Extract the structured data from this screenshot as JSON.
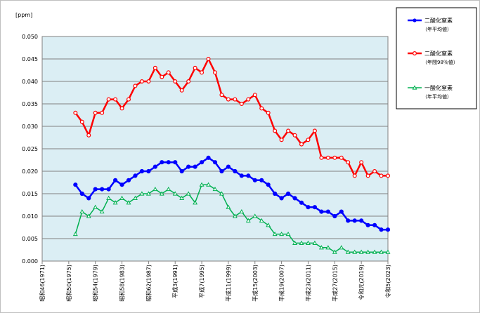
{
  "chart_data": {
    "type": "line",
    "unit_label": "[ppm]",
    "ylim": [
      0,
      0.05
    ],
    "y_ticks": [
      "0.000",
      "0.005",
      "0.010",
      "0.015",
      "0.020",
      "0.025",
      "0.030",
      "0.035",
      "0.040",
      "0.045",
      "0.050"
    ],
    "xlim": [
      1971,
      2023
    ],
    "x_ticks": [
      {
        "year": 1971,
        "label": "昭和46(1971)"
      },
      {
        "year": 1975,
        "label": "昭和50(1975)"
      },
      {
        "year": 1979,
        "label": "昭和54(1979)"
      },
      {
        "year": 1983,
        "label": "昭和58(1983)"
      },
      {
        "year": 1987,
        "label": "昭和62(1987)"
      },
      {
        "year": 1991,
        "label": "平成3(1991)"
      },
      {
        "year": 1995,
        "label": "平成7(1995)"
      },
      {
        "year": 1999,
        "label": "平成11(1999)"
      },
      {
        "year": 2003,
        "label": "平成15(2003)"
      },
      {
        "year": 2007,
        "label": "平成19(2007)"
      },
      {
        "year": 2011,
        "label": "平成23(2011)"
      },
      {
        "year": 2015,
        "label": "平成27(2015)"
      },
      {
        "year": 2019,
        "label": "令和元(2019)"
      },
      {
        "year": 2023,
        "label": "令和5(2023)"
      }
    ],
    "grid": true,
    "legend_position": "right",
    "x": [
      1976,
      1977,
      1978,
      1979,
      1980,
      1981,
      1982,
      1983,
      1984,
      1985,
      1986,
      1987,
      1988,
      1989,
      1990,
      1991,
      1992,
      1993,
      1994,
      1995,
      1996,
      1997,
      1998,
      1999,
      2000,
      2001,
      2002,
      2003,
      2004,
      2005,
      2006,
      2007,
      2008,
      2009,
      2010,
      2011,
      2012,
      2013,
      2014,
      2015,
      2016,
      2017,
      2018,
      2019,
      2020,
      2021,
      2022,
      2023
    ],
    "series": [
      {
        "name": "二酸化窒素",
        "subtitle": "（年平均値）",
        "color": "#0000ff",
        "marker": "circle-filled",
        "values": [
          0.017,
          0.015,
          0.014,
          0.016,
          0.016,
          0.016,
          0.018,
          0.017,
          0.018,
          0.019,
          0.02,
          0.02,
          0.021,
          0.022,
          0.022,
          0.022,
          0.02,
          0.021,
          0.021,
          0.022,
          0.023,
          0.022,
          0.02,
          0.021,
          0.02,
          0.019,
          0.019,
          0.018,
          0.018,
          0.017,
          0.015,
          0.014,
          0.015,
          0.014,
          0.013,
          0.012,
          0.012,
          0.011,
          0.011,
          0.01,
          0.011,
          0.009,
          0.009,
          0.009,
          0.008,
          0.008,
          0.007,
          0.007
        ]
      },
      {
        "name": "二酸化窒素",
        "subtitle": "（年間98％値）",
        "color": "#ff0000",
        "marker": "circle-open",
        "values": [
          0.033,
          0.031,
          0.028,
          0.033,
          0.033,
          0.036,
          0.036,
          0.034,
          0.036,
          0.039,
          0.04,
          0.04,
          0.043,
          0.041,
          0.042,
          0.04,
          0.038,
          0.04,
          0.043,
          0.042,
          0.045,
          0.042,
          0.037,
          0.036,
          0.036,
          0.035,
          0.036,
          0.037,
          0.034,
          0.033,
          0.029,
          0.027,
          0.029,
          0.028,
          0.026,
          0.027,
          0.029,
          0.023,
          0.023,
          0.023,
          0.023,
          0.022,
          0.019,
          0.022,
          0.019,
          0.02,
          0.019,
          0.019
        ]
      },
      {
        "name": "一酸化窒素",
        "subtitle": "（年平均値）",
        "color": "#00b050",
        "marker": "triangle-open",
        "values": [
          0.006,
          0.011,
          0.01,
          0.012,
          0.011,
          0.014,
          0.013,
          0.014,
          0.013,
          0.014,
          0.015,
          0.015,
          0.016,
          0.015,
          0.016,
          0.015,
          0.014,
          0.015,
          0.013,
          0.017,
          0.017,
          0.016,
          0.015,
          0.012,
          0.01,
          0.011,
          0.009,
          0.01,
          0.009,
          0.008,
          0.006,
          0.006,
          0.006,
          0.004,
          0.004,
          0.004,
          0.004,
          0.003,
          0.003,
          0.002,
          0.003,
          0.002,
          0.002,
          0.002,
          0.002,
          0.002,
          0.002,
          0.002
        ]
      }
    ]
  }
}
